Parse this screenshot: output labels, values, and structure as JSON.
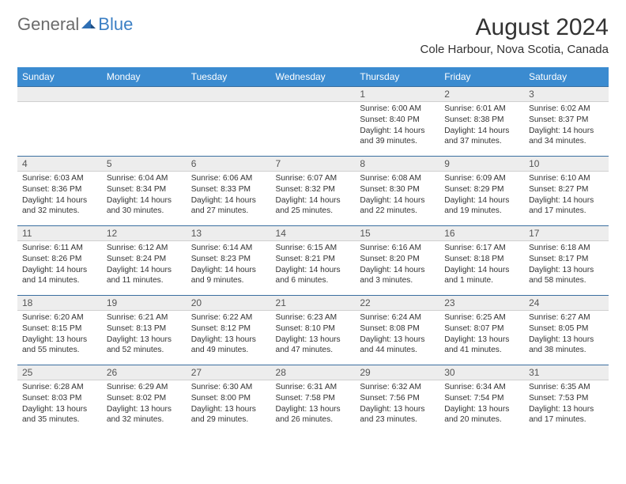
{
  "brand": {
    "general": "General",
    "blue": "Blue"
  },
  "header": {
    "month_title": "August 2024",
    "location": "Cole Harbour, Nova Scotia, Canada"
  },
  "colors": {
    "header_bg": "#3b8bd0",
    "header_text": "#ffffff",
    "daynum_bg": "#ededed",
    "row_rule": "#3b6fa0"
  },
  "weekdays": [
    "Sunday",
    "Monday",
    "Tuesday",
    "Wednesday",
    "Thursday",
    "Friday",
    "Saturday"
  ],
  "weeks": [
    [
      null,
      null,
      null,
      null,
      {
        "n": "1",
        "sunrise": "Sunrise: 6:00 AM",
        "sunset": "Sunset: 8:40 PM",
        "daylight": "Daylight: 14 hours and 39 minutes."
      },
      {
        "n": "2",
        "sunrise": "Sunrise: 6:01 AM",
        "sunset": "Sunset: 8:38 PM",
        "daylight": "Daylight: 14 hours and 37 minutes."
      },
      {
        "n": "3",
        "sunrise": "Sunrise: 6:02 AM",
        "sunset": "Sunset: 8:37 PM",
        "daylight": "Daylight: 14 hours and 34 minutes."
      }
    ],
    [
      {
        "n": "4",
        "sunrise": "Sunrise: 6:03 AM",
        "sunset": "Sunset: 8:36 PM",
        "daylight": "Daylight: 14 hours and 32 minutes."
      },
      {
        "n": "5",
        "sunrise": "Sunrise: 6:04 AM",
        "sunset": "Sunset: 8:34 PM",
        "daylight": "Daylight: 14 hours and 30 minutes."
      },
      {
        "n": "6",
        "sunrise": "Sunrise: 6:06 AM",
        "sunset": "Sunset: 8:33 PM",
        "daylight": "Daylight: 14 hours and 27 minutes."
      },
      {
        "n": "7",
        "sunrise": "Sunrise: 6:07 AM",
        "sunset": "Sunset: 8:32 PM",
        "daylight": "Daylight: 14 hours and 25 minutes."
      },
      {
        "n": "8",
        "sunrise": "Sunrise: 6:08 AM",
        "sunset": "Sunset: 8:30 PM",
        "daylight": "Daylight: 14 hours and 22 minutes."
      },
      {
        "n": "9",
        "sunrise": "Sunrise: 6:09 AM",
        "sunset": "Sunset: 8:29 PM",
        "daylight": "Daylight: 14 hours and 19 minutes."
      },
      {
        "n": "10",
        "sunrise": "Sunrise: 6:10 AM",
        "sunset": "Sunset: 8:27 PM",
        "daylight": "Daylight: 14 hours and 17 minutes."
      }
    ],
    [
      {
        "n": "11",
        "sunrise": "Sunrise: 6:11 AM",
        "sunset": "Sunset: 8:26 PM",
        "daylight": "Daylight: 14 hours and 14 minutes."
      },
      {
        "n": "12",
        "sunrise": "Sunrise: 6:12 AM",
        "sunset": "Sunset: 8:24 PM",
        "daylight": "Daylight: 14 hours and 11 minutes."
      },
      {
        "n": "13",
        "sunrise": "Sunrise: 6:14 AM",
        "sunset": "Sunset: 8:23 PM",
        "daylight": "Daylight: 14 hours and 9 minutes."
      },
      {
        "n": "14",
        "sunrise": "Sunrise: 6:15 AM",
        "sunset": "Sunset: 8:21 PM",
        "daylight": "Daylight: 14 hours and 6 minutes."
      },
      {
        "n": "15",
        "sunrise": "Sunrise: 6:16 AM",
        "sunset": "Sunset: 8:20 PM",
        "daylight": "Daylight: 14 hours and 3 minutes."
      },
      {
        "n": "16",
        "sunrise": "Sunrise: 6:17 AM",
        "sunset": "Sunset: 8:18 PM",
        "daylight": "Daylight: 14 hours and 1 minute."
      },
      {
        "n": "17",
        "sunrise": "Sunrise: 6:18 AM",
        "sunset": "Sunset: 8:17 PM",
        "daylight": "Daylight: 13 hours and 58 minutes."
      }
    ],
    [
      {
        "n": "18",
        "sunrise": "Sunrise: 6:20 AM",
        "sunset": "Sunset: 8:15 PM",
        "daylight": "Daylight: 13 hours and 55 minutes."
      },
      {
        "n": "19",
        "sunrise": "Sunrise: 6:21 AM",
        "sunset": "Sunset: 8:13 PM",
        "daylight": "Daylight: 13 hours and 52 minutes."
      },
      {
        "n": "20",
        "sunrise": "Sunrise: 6:22 AM",
        "sunset": "Sunset: 8:12 PM",
        "daylight": "Daylight: 13 hours and 49 minutes."
      },
      {
        "n": "21",
        "sunrise": "Sunrise: 6:23 AM",
        "sunset": "Sunset: 8:10 PM",
        "daylight": "Daylight: 13 hours and 47 minutes."
      },
      {
        "n": "22",
        "sunrise": "Sunrise: 6:24 AM",
        "sunset": "Sunset: 8:08 PM",
        "daylight": "Daylight: 13 hours and 44 minutes."
      },
      {
        "n": "23",
        "sunrise": "Sunrise: 6:25 AM",
        "sunset": "Sunset: 8:07 PM",
        "daylight": "Daylight: 13 hours and 41 minutes."
      },
      {
        "n": "24",
        "sunrise": "Sunrise: 6:27 AM",
        "sunset": "Sunset: 8:05 PM",
        "daylight": "Daylight: 13 hours and 38 minutes."
      }
    ],
    [
      {
        "n": "25",
        "sunrise": "Sunrise: 6:28 AM",
        "sunset": "Sunset: 8:03 PM",
        "daylight": "Daylight: 13 hours and 35 minutes."
      },
      {
        "n": "26",
        "sunrise": "Sunrise: 6:29 AM",
        "sunset": "Sunset: 8:02 PM",
        "daylight": "Daylight: 13 hours and 32 minutes."
      },
      {
        "n": "27",
        "sunrise": "Sunrise: 6:30 AM",
        "sunset": "Sunset: 8:00 PM",
        "daylight": "Daylight: 13 hours and 29 minutes."
      },
      {
        "n": "28",
        "sunrise": "Sunrise: 6:31 AM",
        "sunset": "Sunset: 7:58 PM",
        "daylight": "Daylight: 13 hours and 26 minutes."
      },
      {
        "n": "29",
        "sunrise": "Sunrise: 6:32 AM",
        "sunset": "Sunset: 7:56 PM",
        "daylight": "Daylight: 13 hours and 23 minutes."
      },
      {
        "n": "30",
        "sunrise": "Sunrise: 6:34 AM",
        "sunset": "Sunset: 7:54 PM",
        "daylight": "Daylight: 13 hours and 20 minutes."
      },
      {
        "n": "31",
        "sunrise": "Sunrise: 6:35 AM",
        "sunset": "Sunset: 7:53 PM",
        "daylight": "Daylight: 13 hours and 17 minutes."
      }
    ]
  ]
}
